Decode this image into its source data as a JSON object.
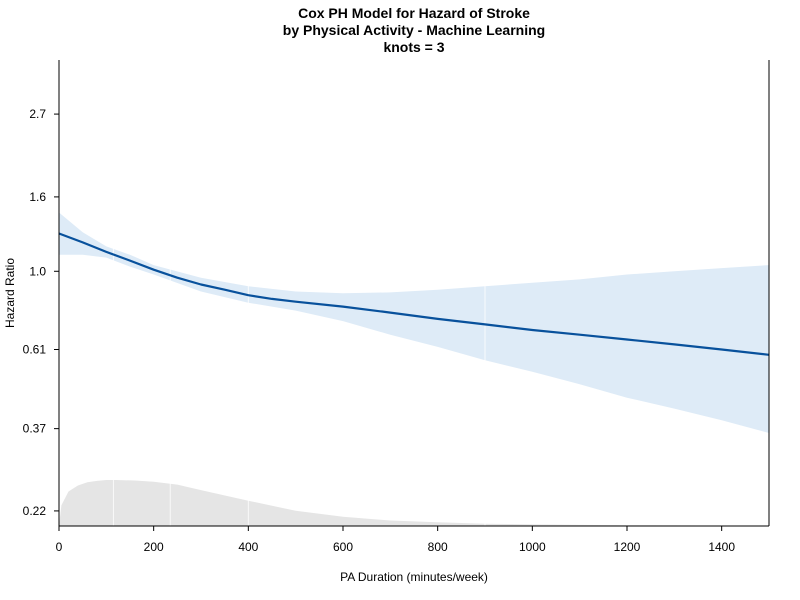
{
  "chart_data": {
    "type": "line",
    "title": [
      "Cox PH Model for Hazard of Stroke",
      "by Physical Activity - Machine Learning",
      "knots = 3"
    ],
    "xlabel": "PA Duration (minutes/week)",
    "ylabel": "Hazard Ratio",
    "y_scale": "log",
    "xlim": [
      0,
      1500
    ],
    "ylim": [
      0.2,
      3.8
    ],
    "x_ticks": [
      0,
      200,
      400,
      600,
      800,
      1000,
      1200,
      1400
    ],
    "y_ticks": [
      0.22,
      0.37,
      0.61,
      1.0,
      1.6,
      2.7
    ],
    "y_tick_labels": [
      "0.22",
      "0.37",
      "0.61",
      "1.0",
      "1.6",
      "2.7"
    ],
    "grid": false,
    "series": [
      {
        "kind": "estimate",
        "color": "#08519c",
        "x": [
          0,
          50,
          100,
          150,
          200,
          250,
          300,
          350,
          400,
          450,
          500,
          600,
          700,
          800,
          900,
          1000,
          1100,
          1200,
          1300,
          1400,
          1500
        ],
        "y": [
          1.27,
          1.2,
          1.13,
          1.07,
          1.01,
          0.96,
          0.92,
          0.89,
          0.86,
          0.84,
          0.825,
          0.8,
          0.77,
          0.74,
          0.715,
          0.69,
          0.67,
          0.65,
          0.63,
          0.61,
          0.59
        ]
      },
      {
        "kind": "ci-upper",
        "color": "#deebf7",
        "x": [
          0,
          50,
          100,
          150,
          200,
          300,
          400,
          500,
          600,
          700,
          800,
          900,
          1000,
          1100,
          1200,
          1300,
          1400,
          1500
        ],
        "y": [
          1.45,
          1.28,
          1.17,
          1.11,
          1.04,
          0.96,
          0.91,
          0.88,
          0.87,
          0.875,
          0.89,
          0.91,
          0.93,
          0.95,
          0.98,
          1.0,
          1.02,
          1.04
        ]
      },
      {
        "kind": "ci-lower",
        "color": "#deebf7",
        "x": [
          0,
          50,
          100,
          150,
          200,
          300,
          400,
          500,
          600,
          700,
          800,
          900,
          1000,
          1100,
          1200,
          1300,
          1400,
          1500
        ],
        "y": [
          1.11,
          1.11,
          1.09,
          1.03,
          0.98,
          0.88,
          0.82,
          0.78,
          0.73,
          0.67,
          0.62,
          0.57,
          0.53,
          0.49,
          0.45,
          0.42,
          0.39,
          0.36
        ]
      },
      {
        "kind": "density",
        "color": "#e5e5e5",
        "x": [
          0,
          5,
          20,
          40,
          60,
          80,
          100,
          120,
          160,
          200,
          250,
          300,
          400,
          500,
          600,
          700,
          800,
          900,
          1000,
          1100,
          1200,
          1300,
          1400,
          1500
        ],
        "y": [
          0.0,
          0.45,
          0.75,
          0.88,
          0.95,
          0.98,
          1.0,
          1.0,
          0.99,
          0.96,
          0.9,
          0.78,
          0.55,
          0.33,
          0.2,
          0.12,
          0.08,
          0.05,
          0.035,
          0.025,
          0.018,
          0.012,
          0.008,
          0.005
        ]
      }
    ],
    "white_ticks_x": [
      115,
      235,
      400,
      900
    ]
  }
}
